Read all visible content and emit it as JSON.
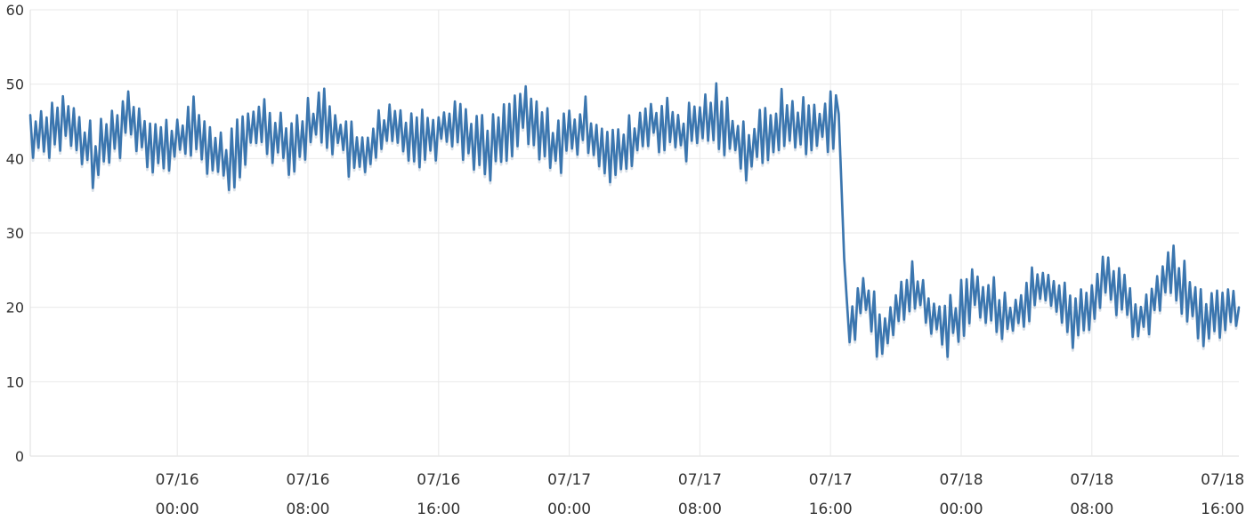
{
  "chart_data": {
    "type": "line",
    "title": "",
    "xlabel": "",
    "ylabel": "",
    "ylim": [
      0,
      60
    ],
    "yticks": [
      0,
      10,
      20,
      30,
      40,
      50,
      60
    ],
    "xlim": [
      "07/15 15:00",
      "07/18 17:00"
    ],
    "xticks": [
      {
        "date": "07/16",
        "time": "00:00",
        "t": "07/16 00:00"
      },
      {
        "date": "07/16",
        "time": "08:00",
        "t": "07/16 08:00"
      },
      {
        "date": "07/16",
        "time": "16:00",
        "t": "07/16 16:00"
      },
      {
        "date": "07/17",
        "time": "00:00",
        "t": "07/17 00:00"
      },
      {
        "date": "07/17",
        "time": "08:00",
        "t": "07/17 08:00"
      },
      {
        "date": "07/17",
        "time": "16:00",
        "t": "07/17 16:00"
      },
      {
        "date": "07/18",
        "time": "00:00",
        "t": "07/18 00:00"
      },
      {
        "date": "07/18",
        "time": "08:00",
        "t": "07/18 08:00"
      },
      {
        "date": "07/18",
        "time": "16:00",
        "t": "07/18 16:00"
      }
    ],
    "grid": true,
    "legend": "none",
    "series": [
      {
        "color": "#3b76af",
        "x": [
          "07/15 15:00",
          "07/15 17:00",
          "07/15 19:00",
          "07/15 21:00",
          "07/15 23:00",
          "07/16 01:00",
          "07/16 03:00",
          "07/16 05:00",
          "07/16 07:00",
          "07/16 09:00",
          "07/16 11:00",
          "07/16 13:00",
          "07/16 15:00",
          "07/16 17:00",
          "07/16 19:00",
          "07/16 21:00",
          "07/16 23:00",
          "07/17 01:00",
          "07/17 03:00",
          "07/17 05:00",
          "07/17 07:00",
          "07/17 09:00",
          "07/17 11:00",
          "07/17 13:00",
          "07/17 15:00",
          "07/17 16:30",
          "07/17 17:00",
          "07/17 18:00",
          "07/17 19:00",
          "07/17 21:00",
          "07/17 23:00",
          "07/18 01:00",
          "07/18 03:00",
          "07/18 05:00",
          "07/18 07:00",
          "07/18 09:00",
          "07/18 11:00",
          "07/18 13:00",
          "07/18 15:00",
          "07/18 17:00"
        ],
        "y": [
          43,
          45,
          40,
          46,
          41,
          44,
          39,
          45,
          42,
          46,
          40,
          44,
          43,
          45,
          41,
          46,
          42,
          44,
          40,
          45,
          43,
          46,
          41,
          45,
          44,
          46,
          17,
          22,
          16,
          23,
          17,
          22,
          18,
          23,
          18,
          24,
          18,
          25,
          18,
          20
        ]
      }
    ]
  }
}
